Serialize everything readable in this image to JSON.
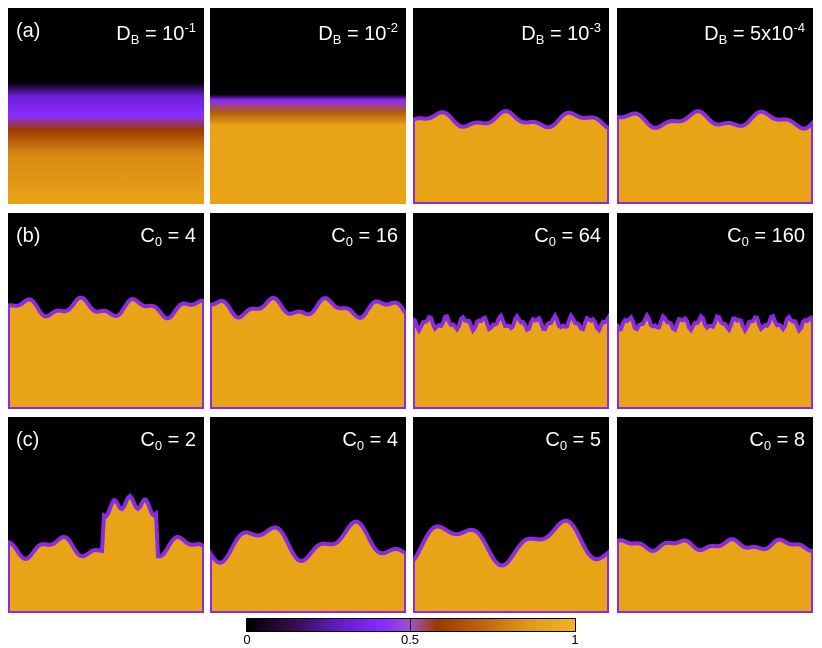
{
  "rows": [
    {
      "label": "(a)",
      "panels": [
        {
          "param": "D",
          "sub": "B",
          "eq": " = ",
          "base": "10",
          "sup": "-1",
          "mode": "diffuse1"
        },
        {
          "param": "D",
          "sub": "B",
          "eq": " = ",
          "base": "10",
          "sup": "-2",
          "mode": "diffuse2"
        },
        {
          "param": "D",
          "sub": "B",
          "eq": " = ",
          "base": "10",
          "sup": "-3",
          "mode": "rough"
        },
        {
          "param": "D",
          "sub": "B",
          "eq": " = ",
          "base": "5x10",
          "sup": "-4",
          "mode": "rough"
        }
      ]
    },
    {
      "label": "(b)",
      "panels": [
        {
          "param": "C",
          "sub": "0",
          "eq": " = ",
          "base": "4",
          "sup": "",
          "mode": "bumpy"
        },
        {
          "param": "C",
          "sub": "0",
          "eq": " = ",
          "base": "16",
          "sup": "",
          "mode": "bumpy"
        },
        {
          "param": "C",
          "sub": "0",
          "eq": " = ",
          "base": "64",
          "sup": "",
          "mode": "fine"
        },
        {
          "param": "C",
          "sub": "0",
          "eq": " = ",
          "base": "160",
          "sup": "",
          "mode": "fine"
        }
      ]
    },
    {
      "label": "(c)",
      "panels": [
        {
          "param": "C",
          "sub": "0",
          "eq": " = ",
          "base": "2",
          "sup": "",
          "mode": "fingers"
        },
        {
          "param": "C",
          "sub": "0",
          "eq": " = ",
          "base": "4",
          "sup": "",
          "mode": "big"
        },
        {
          "param": "C",
          "sub": "0",
          "eq": " = ",
          "base": "5",
          "sup": "",
          "mode": "big2"
        },
        {
          "param": "C",
          "sub": "0",
          "eq": " = ",
          "base": "8",
          "sup": "",
          "mode": "flat"
        }
      ]
    }
  ],
  "colorbar": {
    "min_label": "0",
    "mid_label": "0.5",
    "max_label": "1",
    "min": 0,
    "max": 1
  },
  "colors": {
    "solid": "#e8a316",
    "edge": "#8a2be2",
    "background": "#000000"
  }
}
